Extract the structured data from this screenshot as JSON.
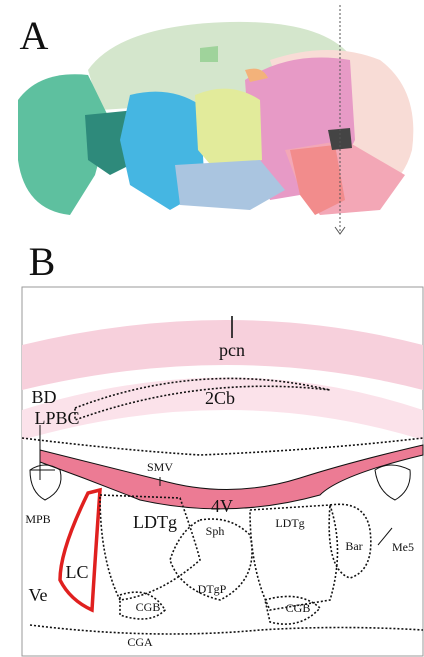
{
  "panel_a": {
    "label": "A"
  },
  "panel_b": {
    "label": "B",
    "regions": [
      "pcn",
      "2Cb",
      "BD",
      "LPBC",
      "SMV",
      "4V",
      "MPB",
      "LDTg",
      "LDTg",
      "Sph",
      "Bar",
      "Me5",
      "LC",
      "Ve",
      "DTgP",
      "CGB",
      "CGB",
      "CGA"
    ]
  }
}
